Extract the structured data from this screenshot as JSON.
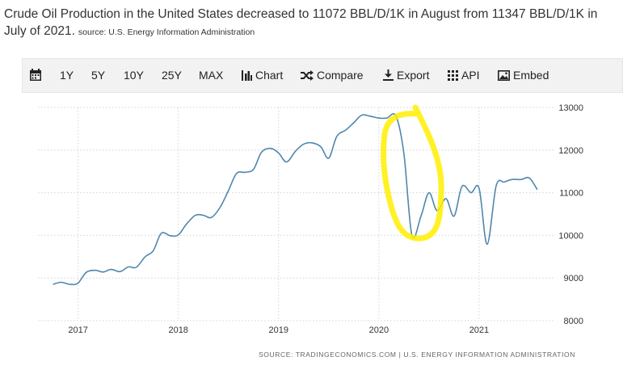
{
  "headline": {
    "line1": "Crude Oil Production in the United States decreased to 11072 BBL/D/1K in August from 11347 BBL/D/1K in",
    "line2": "July of 2021.",
    "source": "source: U.S. Energy Information Administration"
  },
  "toolbar": {
    "items": [
      {
        "label": "1Y"
      },
      {
        "label": "5Y"
      },
      {
        "label": "10Y"
      },
      {
        "label": "25Y"
      },
      {
        "label": "MAX"
      },
      {
        "label": "Chart"
      },
      {
        "label": "Compare"
      },
      {
        "label": "Export"
      },
      {
        "label": "API"
      },
      {
        "label": "Embed"
      }
    ]
  },
  "colors": {
    "line": "#4f87ad",
    "annotation": "#ffee00",
    "grid": "#d4d4d4"
  },
  "chart_data": {
    "type": "line",
    "title": "Crude Oil Production in the United States",
    "ylim": [
      8000,
      13000
    ],
    "xlim": [
      2016.6,
      2021.75
    ],
    "yticks": [
      "8000",
      "9000",
      "10000",
      "11000",
      "12000",
      "13000"
    ],
    "xticks": [
      "2017",
      "2018",
      "2019",
      "2020",
      "2021"
    ],
    "grid": true,
    "source_footer": "SOURCE: TRADINGECONOMICS.COM | U.S. ENERGY INFORMATION ADMINISTRATION",
    "series": [
      {
        "name": "Crude Oil Production (BBL/D/1K)",
        "x": [
          2016.75,
          2016.83,
          2016.92,
          2017.0,
          2017.08,
          2017.17,
          2017.25,
          2017.33,
          2017.42,
          2017.5,
          2017.58,
          2017.67,
          2017.75,
          2017.83,
          2017.92,
          2018.0,
          2018.08,
          2018.17,
          2018.25,
          2018.33,
          2018.42,
          2018.5,
          2018.58,
          2018.67,
          2018.75,
          2018.83,
          2018.92,
          2019.0,
          2019.08,
          2019.17,
          2019.25,
          2019.33,
          2019.42,
          2019.5,
          2019.58,
          2019.67,
          2019.75,
          2019.83,
          2019.92,
          2020.0,
          2020.08,
          2020.17,
          2020.25,
          2020.33,
          2020.42,
          2020.5,
          2020.58,
          2020.67,
          2020.75,
          2020.83,
          2020.92,
          2021.0,
          2021.08,
          2021.17,
          2021.25,
          2021.33,
          2021.42,
          2021.5,
          2021.58
        ],
        "values": [
          8850,
          8900,
          8850,
          8880,
          9130,
          9180,
          9140,
          9200,
          9150,
          9260,
          9250,
          9500,
          9640,
          10050,
          9990,
          10010,
          10260,
          10470,
          10470,
          10420,
          10670,
          11050,
          11450,
          11480,
          11550,
          11950,
          12040,
          11930,
          11720,
          11980,
          12140,
          12170,
          12080,
          11810,
          12320,
          12470,
          12640,
          12820,
          12790,
          12750,
          12750,
          12800,
          11910,
          10000,
          10450,
          11000,
          10580,
          10860,
          10450,
          11150,
          11000,
          11100,
          9790,
          11160,
          11250,
          11310,
          11310,
          11347,
          11072
        ]
      }
    ],
    "annotation": {
      "type": "hand-drawn circle",
      "center_x": 2020.38,
      "center_y": 11400
    }
  }
}
